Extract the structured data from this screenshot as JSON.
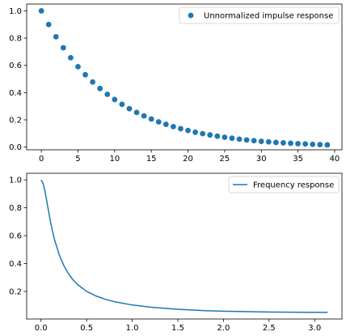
{
  "chart_data": [
    {
      "type": "scatter",
      "title": "",
      "xlabel": "",
      "ylabel": "",
      "xlim": [
        -2,
        41
      ],
      "ylim": [
        -0.02,
        1.05
      ],
      "grid": false,
      "legend_placement": "top-right",
      "x_ticks": [
        0,
        5,
        10,
        15,
        20,
        25,
        30,
        35,
        40
      ],
      "x_tick_labels": [
        "0",
        "5",
        "10",
        "15",
        "20",
        "25",
        "30",
        "35",
        "40"
      ],
      "y_ticks": [
        0.0,
        0.2,
        0.4,
        0.6,
        0.8,
        1.0
      ],
      "y_tick_labels": [
        "0.0",
        "0.2",
        "0.4",
        "0.6",
        "0.8",
        "1.0"
      ],
      "series": [
        {
          "name": "Unnormalized impulse response",
          "color": "#1f77b4",
          "marker": "circle",
          "x": [
            0,
            1,
            2,
            3,
            4,
            5,
            6,
            7,
            8,
            9,
            10,
            11,
            12,
            13,
            14,
            15,
            16,
            17,
            18,
            19,
            20,
            21,
            22,
            23,
            24,
            25,
            26,
            27,
            28,
            29,
            30,
            31,
            32,
            33,
            34,
            35,
            36,
            37,
            38,
            39
          ],
          "values": [
            1.0,
            0.9,
            0.81,
            0.729,
            0.656,
            0.59,
            0.531,
            0.478,
            0.43,
            0.387,
            0.349,
            0.314,
            0.282,
            0.254,
            0.229,
            0.206,
            0.185,
            0.167,
            0.15,
            0.135,
            0.122,
            0.109,
            0.098,
            0.089,
            0.08,
            0.072,
            0.065,
            0.058,
            0.052,
            0.047,
            0.042,
            0.038,
            0.034,
            0.031,
            0.028,
            0.025,
            0.023,
            0.02,
            0.018,
            0.016
          ]
        }
      ]
    },
    {
      "type": "line",
      "title": "",
      "xlabel": "",
      "ylabel": "",
      "xlim": [
        -0.157,
        3.299
      ],
      "ylim": [
        0.0024,
        1.0476
      ],
      "grid": false,
      "legend_placement": "top-right",
      "x_ticks": [
        0.0,
        0.5,
        1.0,
        1.5,
        2.0,
        2.5,
        3.0
      ],
      "x_tick_labels": [
        "0.0",
        "0.5",
        "1.0",
        "1.5",
        "2.0",
        "2.5",
        "3.0"
      ],
      "y_ticks": [
        0.2,
        0.4,
        0.6,
        0.8,
        1.0
      ],
      "y_tick_labels": [
        "0.2",
        "0.4",
        "0.6",
        "0.8",
        "1.0"
      ],
      "series": [
        {
          "name": "Frequency response",
          "color": "#1f77b4",
          "x": [
            0.0,
            0.02,
            0.04,
            0.06,
            0.08,
            0.1,
            0.12,
            0.15,
            0.2,
            0.25,
            0.3,
            0.35,
            0.4,
            0.5,
            0.6,
            0.7,
            0.8,
            1.0,
            1.2,
            1.5,
            1.8,
            2.0,
            2.5,
            3.0,
            3.14159
          ],
          "values": [
            1.0,
            0.98,
            0.929,
            0.86,
            0.786,
            0.714,
            0.65,
            0.567,
            0.463,
            0.386,
            0.328,
            0.284,
            0.25,
            0.201,
            0.168,
            0.145,
            0.127,
            0.103,
            0.087,
            0.072,
            0.062,
            0.058,
            0.0525,
            0.0502,
            0.05
          ]
        }
      ]
    }
  ]
}
